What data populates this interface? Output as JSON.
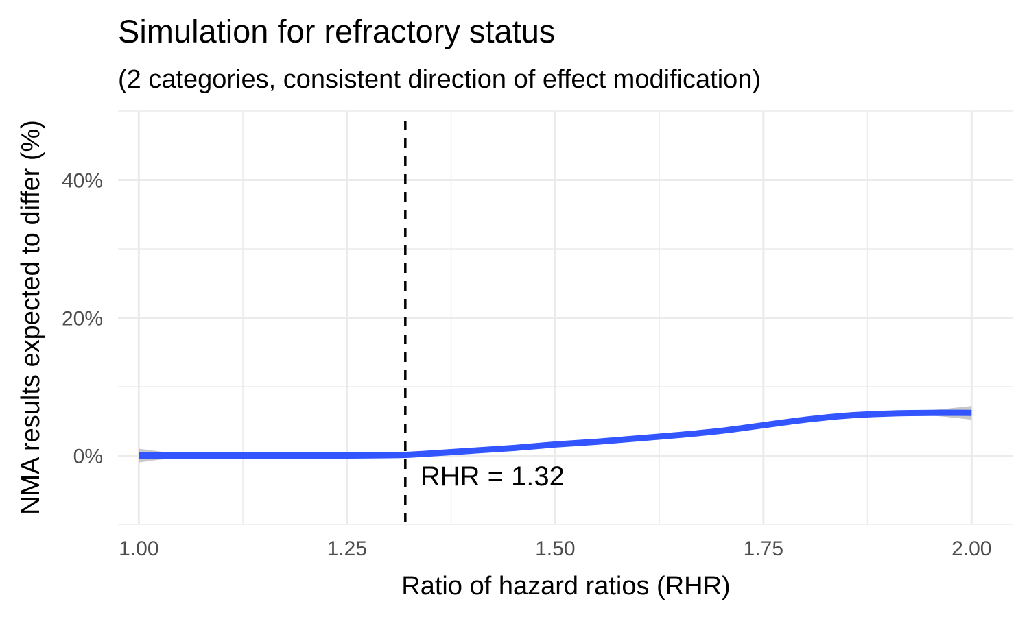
{
  "chart_data": {
    "type": "line",
    "title": "Simulation for refractory status",
    "subtitle": "(2 categories, consistent direction of effect modification)",
    "xlabel": "Ratio of hazard ratios (RHR)",
    "ylabel": "NMA results expected to differ (%)",
    "xlim": [
      0.975,
      2.05
    ],
    "ylim": [
      -10,
      50
    ],
    "x_ticks": [
      1.0,
      1.25,
      1.5,
      1.75,
      2.0
    ],
    "x_tick_labels": [
      "1.00",
      "1.25",
      "1.50",
      "1.75",
      "2.00"
    ],
    "y_ticks": [
      0,
      20,
      40
    ],
    "y_tick_labels": [
      "0%",
      "20%",
      "40%"
    ],
    "grid": true,
    "legend": "none",
    "series": [
      {
        "x": [
          1.0,
          1.05,
          1.1,
          1.15,
          1.2,
          1.25,
          1.3,
          1.32,
          1.35,
          1.4,
          1.45,
          1.5,
          1.55,
          1.6,
          1.65,
          1.7,
          1.75,
          1.8,
          1.85,
          1.9,
          1.95,
          2.0
        ],
        "y": [
          0.0,
          0.0,
          0.0,
          0.0,
          0.0,
          0.0,
          0.05,
          0.1,
          0.3,
          0.7,
          1.1,
          1.6,
          2.0,
          2.5,
          3.0,
          3.6,
          4.4,
          5.2,
          5.8,
          6.1,
          6.2,
          6.2
        ],
        "ci_lower": [
          -1.0,
          -0.3,
          -0.2,
          -0.2,
          -0.2,
          -0.2,
          -0.15,
          -0.1,
          0.1,
          0.5,
          0.9,
          1.4,
          1.8,
          2.3,
          2.8,
          3.4,
          4.2,
          4.9,
          5.5,
          5.8,
          5.8,
          5.2
        ],
        "ci_upper": [
          1.0,
          0.3,
          0.2,
          0.2,
          0.2,
          0.2,
          0.25,
          0.3,
          0.5,
          0.9,
          1.3,
          1.8,
          2.2,
          2.7,
          3.2,
          3.8,
          4.6,
          5.5,
          6.1,
          6.4,
          6.6,
          7.2
        ],
        "color": "#3355ff",
        "ci_color": "#bebebe"
      }
    ],
    "reference_line": {
      "x": 1.32,
      "style": "dashed",
      "color": "#000000",
      "label": "RHR = 1.32"
    },
    "grid_color": "#ebebeb"
  }
}
